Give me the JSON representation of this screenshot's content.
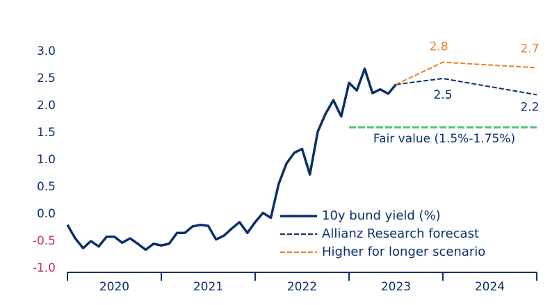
{
  "chart_data": {
    "type": "line",
    "xlim": [
      2020,
      2025
    ],
    "xticks": [
      2020,
      2021,
      2022,
      2023,
      2024,
      2025
    ],
    "categories": [
      "2020",
      "2021",
      "2022",
      "2023",
      "2024"
    ],
    "ylim": [
      -1,
      3
    ],
    "yticks": [
      {
        "value": -1,
        "label": "-1.0"
      },
      {
        "value": -0.5,
        "label": "-0.5"
      },
      {
        "value": 0,
        "label": "0.0"
      },
      {
        "value": 0.5,
        "label": "0.5"
      },
      {
        "value": 1,
        "label": "1.0"
      },
      {
        "value": 1.5,
        "label": "1.5"
      },
      {
        "value": 2,
        "label": "2.0"
      },
      {
        "value": 2.5,
        "label": "2.5"
      },
      {
        "value": 3,
        "label": "3.0"
      }
    ],
    "axis_color": "#0b2f6b",
    "negative_label_color": "#c8336b",
    "legend": "lower right",
    "series": [
      {
        "name": "10y bund yield (%)",
        "color": "#0b2f6b",
        "style": "solid",
        "x": [
          2020,
          2020.083,
          2020.167,
          2020.25,
          2020.333,
          2020.417,
          2020.5,
          2020.583,
          2020.667,
          2020.75,
          2020.833,
          2020.917,
          2021,
          2021.083,
          2021.167,
          2021.25,
          2021.333,
          2021.417,
          2021.5,
          2021.583,
          2021.667,
          2021.75,
          2021.833,
          2021.917,
          2022,
          2022.083,
          2022.167,
          2022.25,
          2022.333,
          2022.417,
          2022.5,
          2022.583,
          2022.667,
          2022.75,
          2022.833,
          2022.917,
          2023,
          2023.083,
          2023.167,
          2023.25,
          2023.333,
          2023.417,
          2023.5
        ],
        "values": [
          -0.2,
          -0.45,
          -0.63,
          -0.5,
          -0.6,
          -0.42,
          -0.42,
          -0.53,
          -0.45,
          -0.55,
          -0.66,
          -0.55,
          -0.58,
          -0.55,
          -0.35,
          -0.35,
          -0.23,
          -0.2,
          -0.22,
          -0.47,
          -0.4,
          -0.27,
          -0.15,
          -0.35,
          -0.15,
          0.02,
          -0.07,
          0.55,
          0.93,
          1.13,
          1.2,
          0.73,
          1.52,
          1.85,
          2.1,
          1.8,
          2.42,
          2.28,
          2.68,
          2.23,
          2.3,
          2.22,
          2.39
        ]
      },
      {
        "name": "Allianz Research forecast",
        "color": "#0b2f6b",
        "style": "dashed",
        "x": [
          2023.5,
          2024,
          2025
        ],
        "values": [
          2.39,
          2.5,
          2.2
        ]
      },
      {
        "name": "Higher for longer scenario",
        "color": "#f07c22",
        "style": "dashed",
        "x": [
          2023.5,
          2024,
          2025
        ],
        "values": [
          2.39,
          2.8,
          2.7
        ]
      }
    ],
    "fair_value": {
      "label": "Fair value (1.5%-1.75%)",
      "color": "#4cc47a",
      "x": [
        2023,
        2025
      ],
      "values": [
        1.6,
        1.6
      ]
    }
  }
}
